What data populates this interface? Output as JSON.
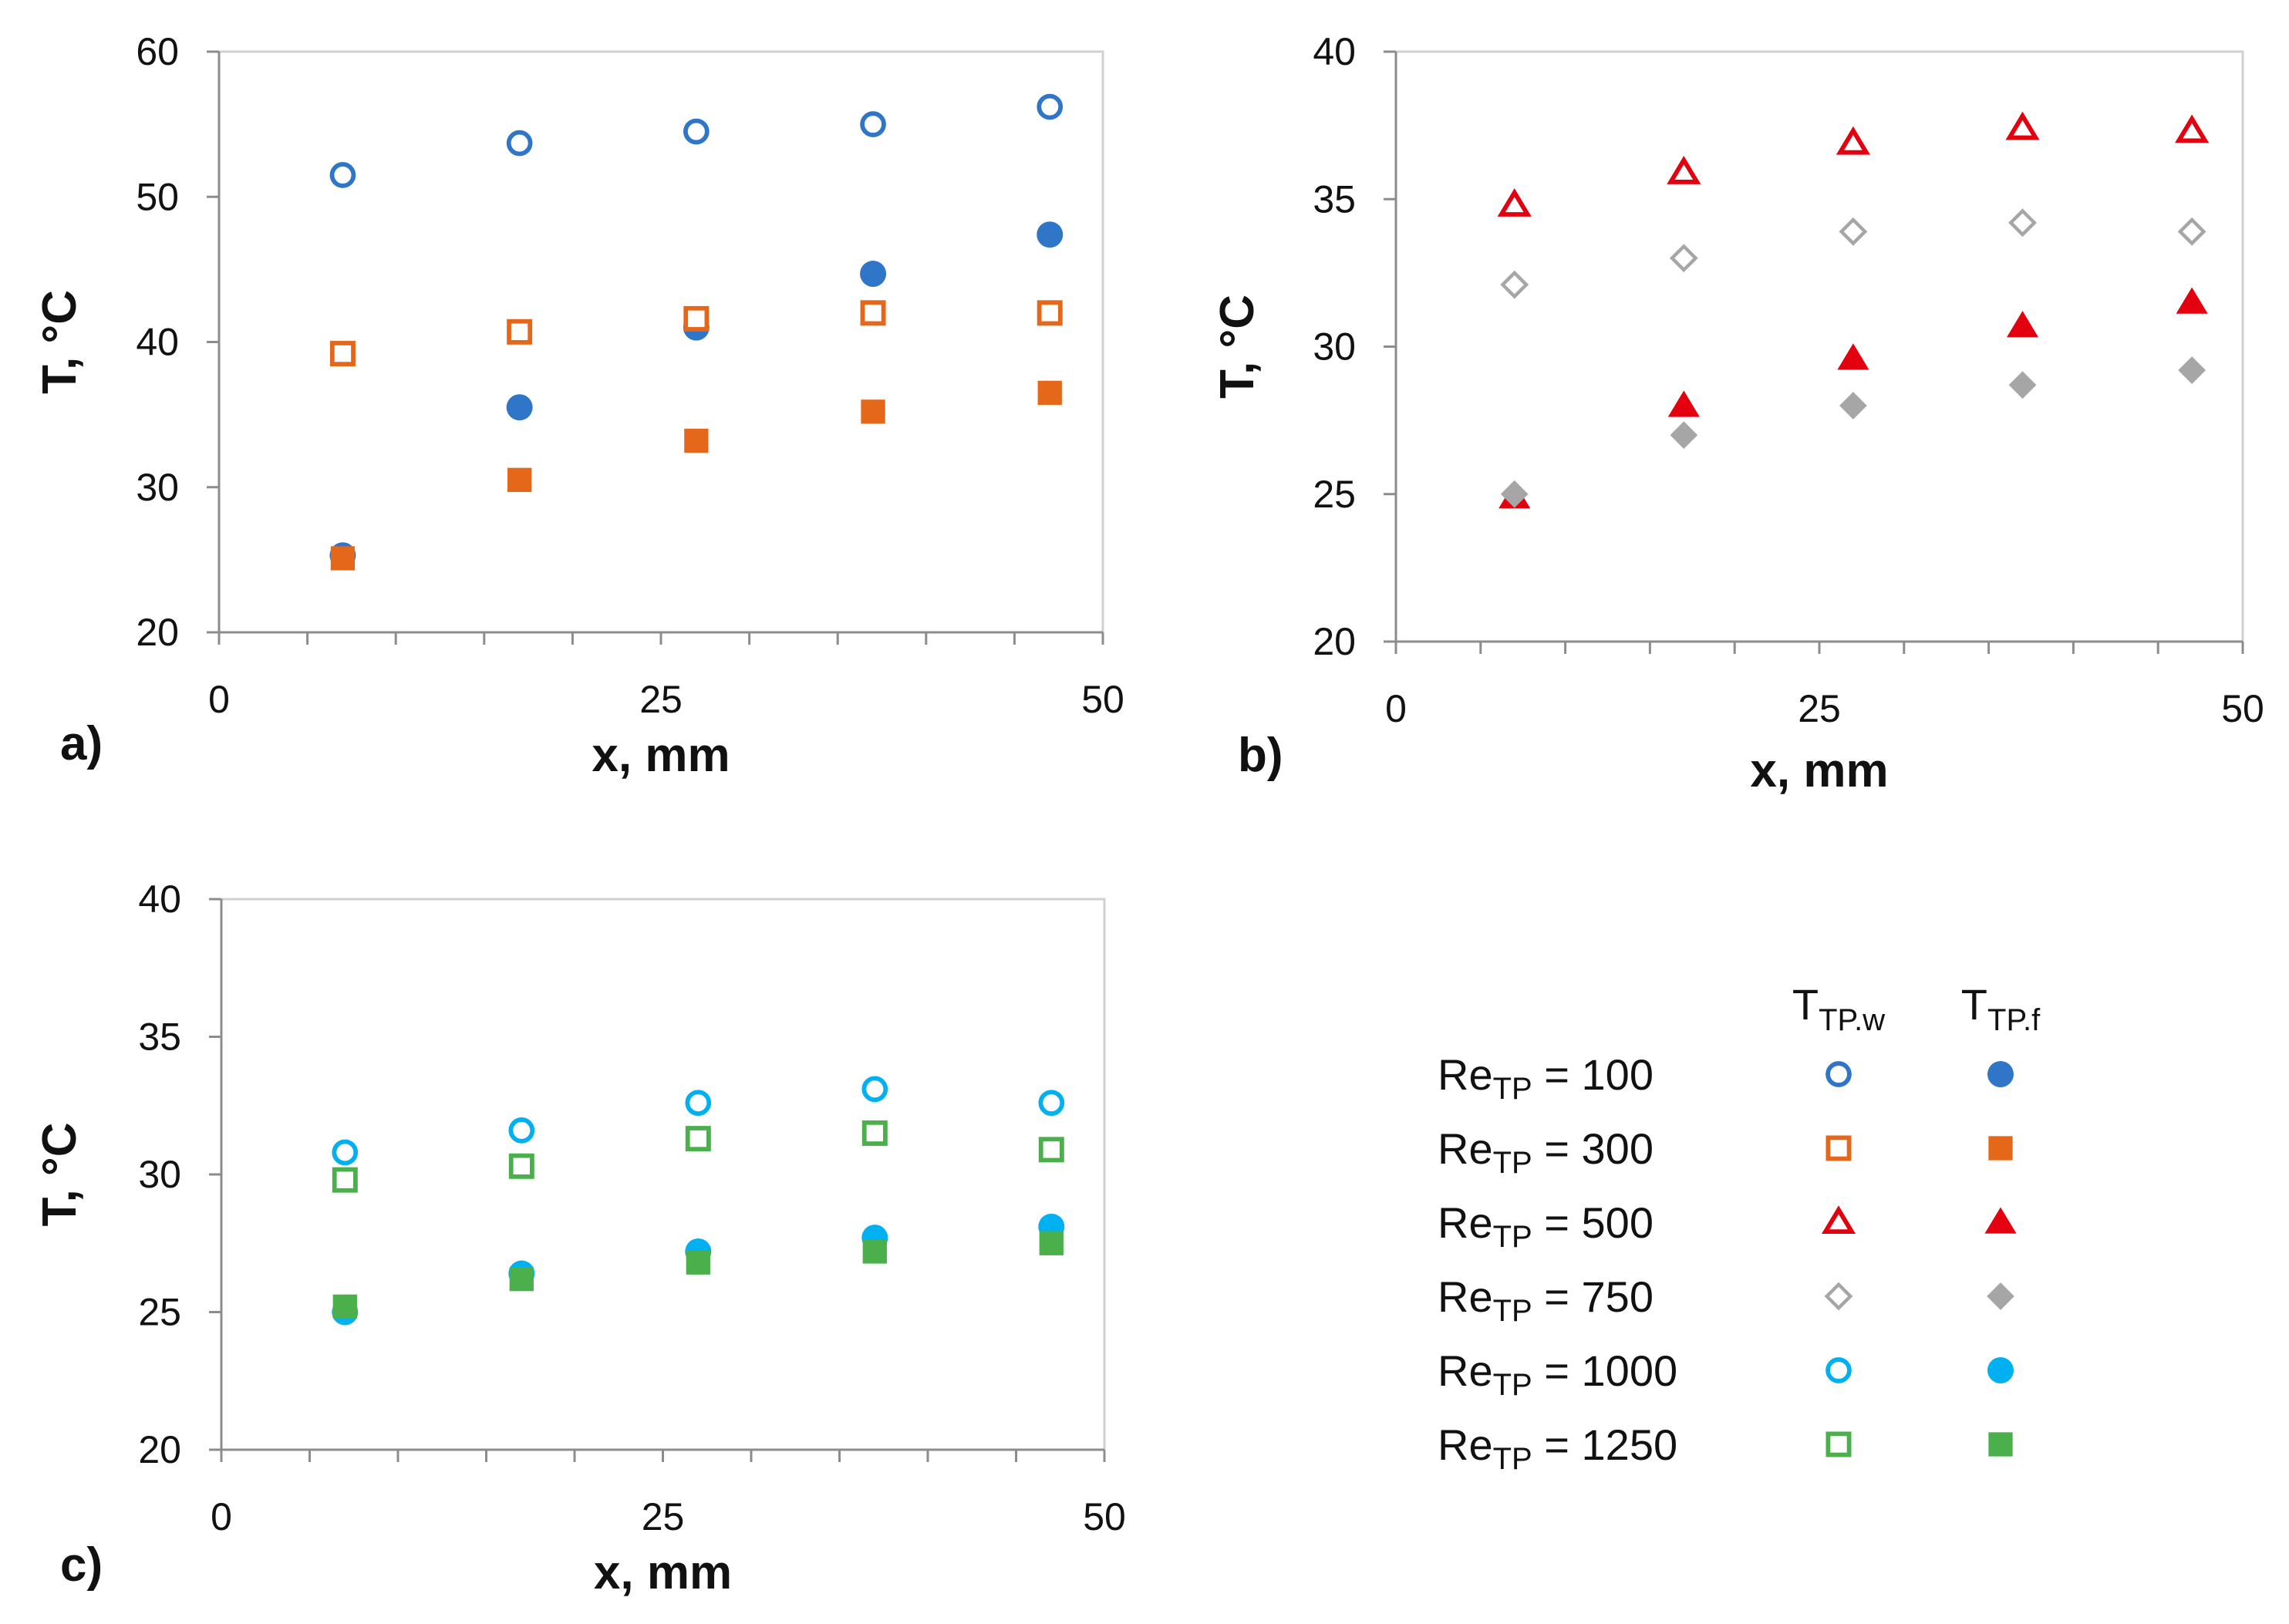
{
  "chart_data": [
    {
      "type": "scatter",
      "panel": "a)",
      "xlabel": "x, mm",
      "ylabel": "T, °C",
      "xlim": [
        0,
        50
      ],
      "ylim": [
        20,
        60
      ],
      "xticks": [
        "0",
        "25",
        "50"
      ],
      "yticks": [
        "20",
        "30",
        "40",
        "50",
        "60"
      ],
      "series": [
        {
          "name": "Re_TP = 100 T_TP.w",
          "group": "100",
          "kind": "wall",
          "x": [
            7,
            17,
            27,
            37,
            47
          ],
          "y": [
            51.5,
            53.7,
            54.5,
            55.0,
            56.2
          ]
        },
        {
          "name": "Re_TP = 100 T_TP.f",
          "group": "100",
          "kind": "fluid",
          "x": [
            7,
            17,
            27,
            37,
            47
          ],
          "y": [
            25.3,
            35.5,
            41.0,
            44.7,
            47.4
          ]
        },
        {
          "name": "Re_TP = 300 T_TP.w",
          "group": "300",
          "kind": "wall",
          "x": [
            7,
            17,
            27,
            37,
            47
          ],
          "y": [
            39.2,
            40.7,
            41.6,
            42.0,
            42.0
          ]
        },
        {
          "name": "Re_TP = 300 T_TP.f",
          "group": "300",
          "kind": "fluid",
          "x": [
            7,
            17,
            27,
            37,
            47
          ],
          "y": [
            25.1,
            30.5,
            33.2,
            35.2,
            36.5
          ]
        }
      ]
    },
    {
      "type": "scatter",
      "panel": "b)",
      "xlabel": "x, mm",
      "ylabel": "T, °C",
      "xlim": [
        0,
        50
      ],
      "ylim": [
        20,
        40
      ],
      "xticks": [
        "0",
        "25",
        "50"
      ],
      "yticks": [
        "20",
        "25",
        "30",
        "35",
        "40"
      ],
      "series": [
        {
          "name": "Re_TP = 500 T_TP.w",
          "group": "500",
          "kind": "wall",
          "x": [
            7,
            17,
            27,
            37,
            47
          ],
          "y": [
            34.8,
            35.9,
            36.9,
            37.4,
            37.3
          ]
        },
        {
          "name": "Re_TP = 500 T_TP.f",
          "group": "500",
          "kind": "fluid",
          "x": [
            7,
            17,
            27,
            37,
            47
          ],
          "y": [
            24.9,
            28.0,
            29.6,
            30.7,
            31.5
          ]
        },
        {
          "name": "Re_TP = 750 T_TP.w",
          "group": "750",
          "kind": "wall",
          "x": [
            7,
            17,
            27,
            37,
            47
          ],
          "y": [
            32.1,
            33.0,
            33.9,
            34.2,
            33.9
          ]
        },
        {
          "name": "Re_TP = 750 T_TP.f",
          "group": "750",
          "kind": "fluid",
          "x": [
            7,
            17,
            27,
            37,
            47
          ],
          "y": [
            25.0,
            27.0,
            28.0,
            28.7,
            29.2
          ]
        }
      ]
    },
    {
      "type": "scatter",
      "panel": "c)",
      "xlabel": "x, mm",
      "ylabel": "T, °C",
      "xlim": [
        0,
        50
      ],
      "ylim": [
        20,
        40
      ],
      "xticks": [
        "0",
        "25",
        "50"
      ],
      "yticks": [
        "20",
        "25",
        "30",
        "35",
        "40"
      ],
      "series": [
        {
          "name": "Re_TP = 1000 T_TP.w",
          "group": "1000",
          "kind": "wall",
          "x": [
            7,
            17,
            27,
            37,
            47
          ],
          "y": [
            30.8,
            31.6,
            32.6,
            33.1,
            32.6
          ]
        },
        {
          "name": "Re_TP = 1000 T_TP.f",
          "group": "1000",
          "kind": "fluid",
          "x": [
            7,
            17,
            27,
            37,
            47
          ],
          "y": [
            25.0,
            26.4,
            27.2,
            27.7,
            28.1
          ]
        },
        {
          "name": "Re_TP = 1250 T_TP.w",
          "group": "1250",
          "kind": "wall",
          "x": [
            7,
            17,
            27,
            37,
            47
          ],
          "y": [
            29.8,
            30.3,
            31.3,
            31.5,
            30.9
          ]
        },
        {
          "name": "Re_TP = 1250 T_TP.f",
          "group": "1250",
          "kind": "fluid",
          "x": [
            7,
            17,
            27,
            37,
            47
          ],
          "y": [
            25.2,
            26.2,
            26.8,
            27.2,
            27.5
          ]
        }
      ]
    }
  ],
  "legend": {
    "col_wall": {
      "main": "T",
      "sub": "TP.w"
    },
    "col_fluid": {
      "main": "T",
      "sub": "TP.f"
    },
    "rows": [
      {
        "id": "100",
        "label_pre": "Re",
        "label_sub": "TP",
        "label_post": " = 100",
        "shape": "circle",
        "color": "#2F75C8"
      },
      {
        "id": "300",
        "label_pre": "Re",
        "label_sub": "TP",
        "label_post": " = 300",
        "shape": "square",
        "color": "#E4671A"
      },
      {
        "id": "500",
        "label_pre": "Re",
        "label_sub": "TP",
        "label_post": " = 500",
        "shape": "triangle",
        "color": "#E3000F"
      },
      {
        "id": "750",
        "label_pre": "Re",
        "label_sub": "TP",
        "label_post": " = 750",
        "shape": "diamond",
        "color": "#A6A6A6"
      },
      {
        "id": "1000",
        "label_pre": "Re",
        "label_sub": "TP",
        "label_post": " = 1000",
        "shape": "circle",
        "color": "#00B0F0"
      },
      {
        "id": "1250",
        "label_pre": "Re",
        "label_sub": "TP",
        "label_post": " = 1250",
        "shape": "square",
        "color": "#4BB04B"
      }
    ]
  }
}
